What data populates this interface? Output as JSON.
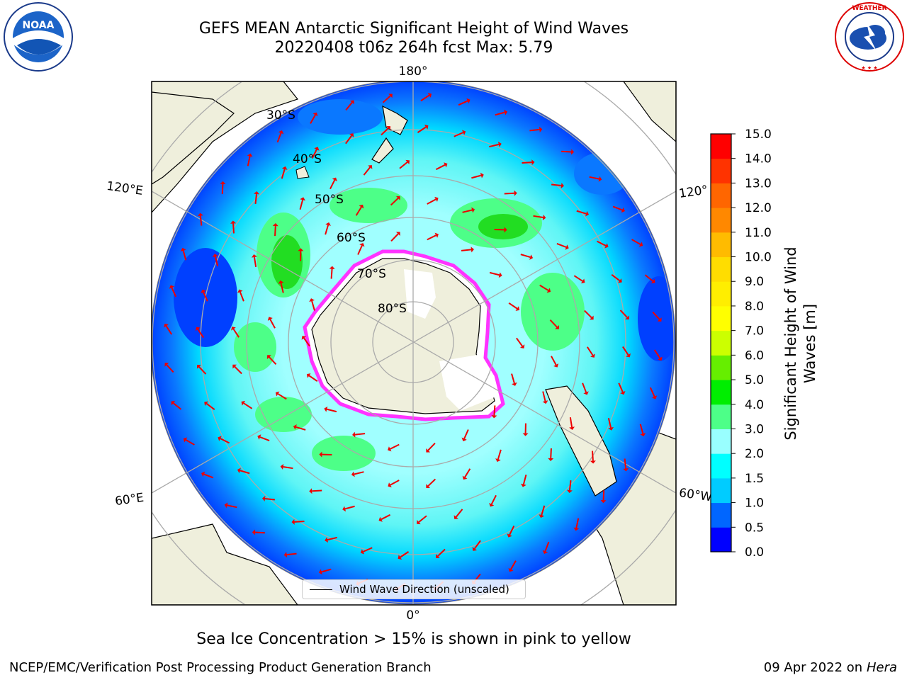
{
  "title_line1": "GEFS MEAN Antarctic Significant Height of Wind Waves",
  "title_line2": "20220408 t06z 264h fcst   Max: 5.79",
  "logos": {
    "left": "NOAA",
    "right": "NATIONAL WEATHER SERVICE"
  },
  "lon_labels": {
    "top": "180°",
    "bottom": "0°",
    "upper_left": "120°E",
    "lower_left": "60°E",
    "upper_right": "120°",
    "lower_right": "60°W"
  },
  "lat_labels": [
    "30°S",
    "40°S",
    "50°S",
    "60°S",
    "70°S",
    "80°S"
  ],
  "legend_label": "Wind Wave Direction (unscaled)",
  "colorbar": {
    "label": "Significant Height of Wind Waves [m]",
    "ticks": [
      "0.0",
      "0.5",
      "1.0",
      "1.5",
      "2.0",
      "3.0",
      "4.0",
      "5.0",
      "6.0",
      "7.0",
      "8.0",
      "9.0",
      "10.0",
      "11.0",
      "12.0",
      "13.0",
      "14.0",
      "15.0"
    ],
    "colors": [
      "#0000ff",
      "#0066ff",
      "#00ccff",
      "#00ffff",
      "#99ffff",
      "#4dff88",
      "#00ee00",
      "#66ee00",
      "#ccff00",
      "#ffff00",
      "#ffee00",
      "#ffdd00",
      "#ffbb00",
      "#ff8800",
      "#ff6600",
      "#ff3300",
      "#ff0000"
    ]
  },
  "bottom_note": "Sea Ice Concentration > 15% is shown in pink to yellow",
  "footer_left": "NCEP/EMC/Verification Post Processing Product Generation Branch",
  "footer_date": "09 Apr 2022 on ",
  "footer_host": "Hera"
}
